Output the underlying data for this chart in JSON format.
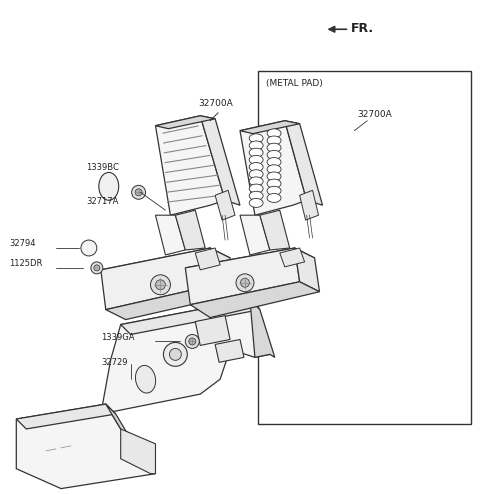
{
  "bg_color": "#ffffff",
  "line_color": "#333333",
  "text_color": "#222222",
  "fill_light": "#f5f5f5",
  "fill_mid": "#e8e8e8",
  "fill_dark": "#d8d8d8",
  "fr_text": "FR.",
  "box_label": "(METAL PAD)",
  "label_32700A_main": "32700A",
  "label_1339BC": "1339BC",
  "label_32717A": "32717A",
  "label_32794": "32794",
  "label_1125DR": "1125DR",
  "label_1339GA": "1339GA",
  "label_32729": "32729",
  "label_32700A_box": "32700A"
}
